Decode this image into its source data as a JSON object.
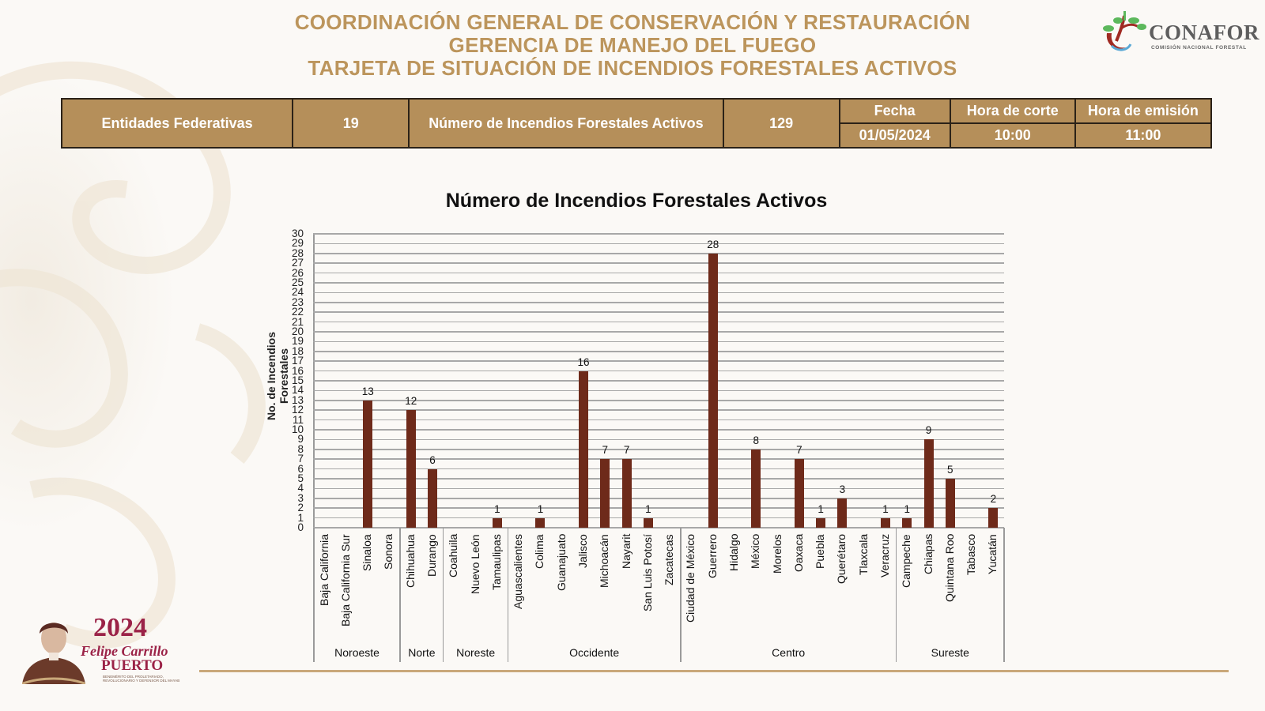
{
  "header": {
    "line1": "COORDINACIÓN GENERAL DE CONSERVACIÓN Y RESTAURACIÓN",
    "line2": "GERENCIA DE MANEJO DEL FUEGO",
    "line3": "TARJETA DE SITUACIÓN DE INCENDIOS FORESTALES ACTIVOS",
    "color": "#bc955c"
  },
  "logo": {
    "word": "CONAFOR",
    "subtitle": "COMISIÓN NACIONAL FORESTAL"
  },
  "summary": {
    "entidades_label": "Entidades Federativas",
    "entidades_value": "19",
    "incendios_label": "Número de Incendios Forestales  Activos",
    "incendios_value": "129",
    "fecha_label": "Fecha",
    "fecha_value": "01/05/2024",
    "corte_label": "Hora de corte",
    "corte_value": "10:00",
    "emision_label": "Hora de emisión",
    "emision_value": "11:00",
    "bg_color": "#b58f5a"
  },
  "badge": {
    "year": "2024",
    "name": "Felipe Carrillo",
    "surname": "PUERTO",
    "subtitle": "BENEMÉRITO DEL PROLETARIADO, REVOLUCIONARIO Y DEFENSOR DEL MAYAB"
  },
  "chart_data": {
    "type": "bar",
    "title": "Número de Incendios Forestales Activos",
    "xlabel": "",
    "ylabel": "No. de Incendios Forestales",
    "ylim": [
      0,
      30
    ],
    "yticks": [
      0,
      1,
      2,
      3,
      4,
      5,
      6,
      7,
      8,
      9,
      10,
      11,
      12,
      13,
      14,
      15,
      16,
      17,
      18,
      19,
      20,
      21,
      22,
      23,
      24,
      25,
      26,
      27,
      28,
      29,
      30
    ],
    "grid": true,
    "bar_color": "#6e2a1a",
    "categories": [
      "Baja California",
      "Baja California Sur",
      "Sinaloa",
      "Sonora",
      "Chihuahua",
      "Durango",
      "Coahuila",
      "Nuevo León",
      "Tamaulipas",
      "Aguascalientes",
      "Colima",
      "Guanajuato",
      "Jalisco",
      "Michoacán",
      "Nayarit",
      "San Luis Potosí",
      "Zacatecas",
      "Ciudad de México",
      "Guerrero",
      "Hidalgo",
      "México",
      "Morelos",
      "Oaxaca",
      "Puebla",
      "Querétaro",
      "Tlaxcala",
      "Veracruz",
      "Campeche",
      "Chiapas",
      "Quintana Roo",
      "Tabasco",
      "Yucatán"
    ],
    "values": [
      0,
      0,
      13,
      0,
      12,
      6,
      0,
      0,
      1,
      0,
      1,
      0,
      16,
      7,
      7,
      1,
      0,
      0,
      28,
      0,
      8,
      0,
      7,
      1,
      3,
      0,
      1,
      1,
      9,
      5,
      0,
      2
    ],
    "groups": [
      {
        "name": "Noroeste",
        "count": 4
      },
      {
        "name": "Norte",
        "count": 2
      },
      {
        "name": "Noreste",
        "count": 3
      },
      {
        "name": "Occidente",
        "count": 8
      },
      {
        "name": "Centro",
        "count": 10
      },
      {
        "name": "Sureste",
        "count": 5
      }
    ]
  }
}
